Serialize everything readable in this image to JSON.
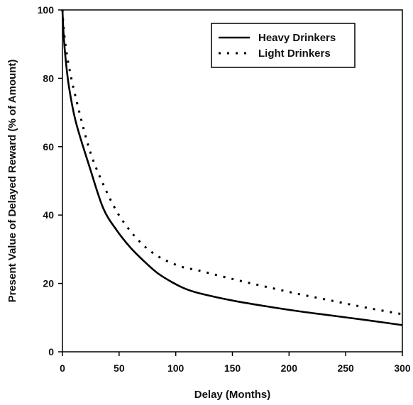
{
  "chart_data": {
    "type": "line",
    "xlabel": "Delay (Months)",
    "ylabel": "Present Value of Delayed Reward (% of Amount)",
    "xlim": [
      0,
      300
    ],
    "ylim": [
      0,
      100
    ],
    "x_ticks": [
      0,
      50,
      100,
      150,
      200,
      250,
      300
    ],
    "y_ticks": [
      0,
      20,
      40,
      60,
      80,
      100
    ],
    "grid": false,
    "legend_position": "top-right",
    "series": [
      {
        "name": "Heavy Drinkers",
        "style": "solid",
        "color": "#000000",
        "x": [
          0,
          1,
          3,
          6,
          12,
          24,
          36,
          48,
          60,
          72,
          84,
          96,
          108,
          120,
          150,
          180,
          210,
          240,
          270,
          300
        ],
        "y": [
          100,
          93,
          85,
          77,
          67,
          54,
          42,
          35.5,
          30.5,
          26.5,
          23,
          20.5,
          18.5,
          17.2,
          15,
          13.3,
          11.8,
          10.5,
          9.2,
          7.8
        ]
      },
      {
        "name": "Light Drinkers",
        "style": "dotted",
        "color": "#000000",
        "x": [
          0,
          1,
          3,
          6,
          12,
          24,
          36,
          48,
          60,
          72,
          84,
          96,
          108,
          120,
          150,
          180,
          210,
          240,
          270,
          300
        ],
        "y": [
          100,
          95,
          89,
          83,
          74,
          59,
          49,
          41,
          35.3,
          31,
          28,
          26,
          24.6,
          23.8,
          21.3,
          19,
          16.8,
          14.8,
          12.8,
          11
        ]
      }
    ]
  }
}
